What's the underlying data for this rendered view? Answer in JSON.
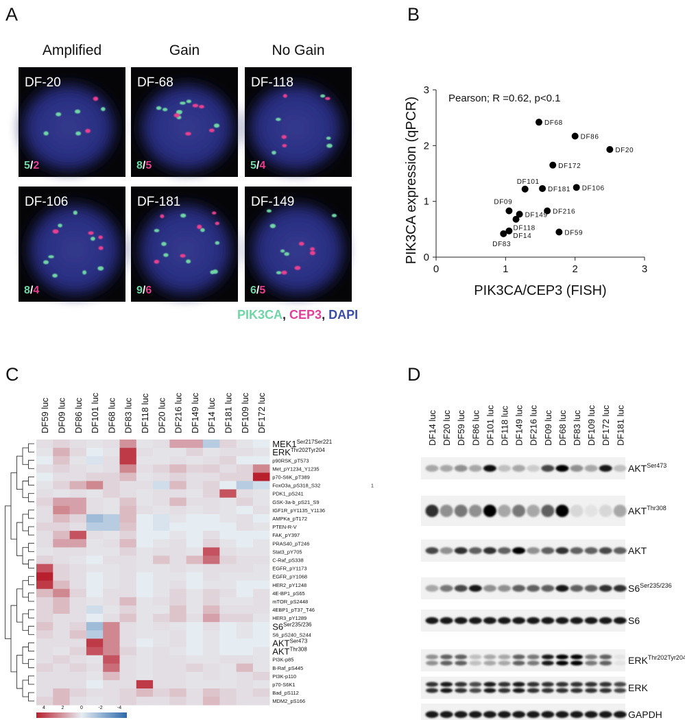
{
  "panel_labels": [
    "A",
    "B",
    "C",
    "D"
  ],
  "panel_a": {
    "headers": [
      "Amplified",
      "Gain",
      "No Gain"
    ],
    "count_separator": "/",
    "green_color": "#6fd6a6",
    "pink_color": "#ea3f8f",
    "cells": [
      {
        "name": "DF-20",
        "green": 5,
        "pink": 2
      },
      {
        "name": "DF-68",
        "green": 8,
        "pink": 5
      },
      {
        "name": "DF-118",
        "green": 5,
        "pink": 4
      },
      {
        "name": "DF-106",
        "green": 8,
        "pink": 4
      },
      {
        "name": "DF-181",
        "green": 9,
        "pink": 6
      },
      {
        "name": "DF-149",
        "green": 6,
        "pink": 5
      }
    ],
    "legend_separator": ", ",
    "legend": [
      {
        "text": "PIK3CA",
        "color": "#6fd6a6"
      },
      {
        "text": "CEP3",
        "color": "#e0409a"
      },
      {
        "text": "DAPI",
        "color": "#3b4ea6"
      }
    ]
  },
  "chart_data": {
    "type": "scatter",
    "annotation": "Pearson; R =0.62, p<0.1",
    "x_label": "PIK3CA/CEP3 (FISH)",
    "y_label": "PIK3CA expression (qPCR)",
    "x": [
      1.48,
      2.0,
      2.5,
      1.68,
      1.28,
      1.53,
      2.02,
      1.05,
      1.6,
      1.2,
      1.15,
      1.05,
      0.97,
      1.77
    ],
    "values": [
      2.42,
      2.17,
      1.93,
      1.65,
      1.22,
      1.23,
      1.25,
      0.83,
      0.83,
      0.77,
      0.68,
      0.47,
      0.42,
      0.45
    ],
    "point_labels": [
      "DF68",
      "DF86",
      "DF20",
      "DF172",
      "DF101",
      "DF181",
      "DF106",
      "DF09",
      "DF216",
      "DF149",
      "DF118",
      "DF14",
      "DF83",
      "DF59"
    ],
    "color": "#000000",
    "xlim": [
      0,
      3
    ],
    "ylim": [
      0,
      3
    ],
    "xticks": [
      0,
      1,
      2,
      3
    ],
    "yticks": [
      0,
      1,
      2,
      3
    ],
    "grid": false
  },
  "panel_c": {
    "columns": [
      "DF59 luc",
      "DF09 luc",
      "DF86 luc",
      "DF101 luc",
      "DF68 luc",
      "DF83 luc",
      "DF118 luc",
      "DF20 luc",
      "DF216 luc",
      "DF149 luc",
      "DF14 luc",
      "DF181 luc",
      "DF109 luc",
      "DF172 luc"
    ],
    "rows": [
      {
        "label": "MEK1",
        "sup": "Ser217Ser221",
        "values": [
          0.3,
          0.5,
          0.3,
          0.2,
          0.3,
          1.8,
          0.2,
          0.3,
          1.5,
          1.5,
          -1,
          0.5,
          0.2,
          0
        ]
      },
      {
        "label": "ERK",
        "sup": "Thr202Tyr204",
        "values": [
          0.2,
          1.2,
          0.4,
          0,
          0.2,
          3.5,
          0.3,
          0.2,
          0.2,
          0.5,
          0.2,
          0.3,
          0.3,
          0.2
        ]
      },
      {
        "label": "p90RSK_pT573",
        "values": [
          0,
          0.8,
          0.2,
          -0.3,
          0.3,
          3.5,
          0.2,
          0.2,
          0.3,
          0.2,
          0.3,
          0.5,
          0,
          0
        ]
      },
      {
        "label": "Met_pY1234_Y1235",
        "values": [
          0.3,
          0.5,
          0.3,
          0.2,
          0.3,
          2,
          0.3,
          0.5,
          1,
          0.5,
          0.6,
          0.3,
          0.5,
          2
        ]
      },
      {
        "label": "p70-S6K_pT389",
        "values": [
          0,
          0.3,
          0.3,
          0.5,
          0.5,
          1,
          0.2,
          0.3,
          0.5,
          0.3,
          0.3,
          0.5,
          0.5,
          4
        ]
      },
      {
        "label": "FoxO3a_pS318_S32",
        "side_note": "1",
        "values": [
          0.2,
          0.5,
          1.2,
          2,
          0.5,
          0.3,
          0.3,
          -0.5,
          1,
          0.3,
          0.5,
          0,
          -1,
          -0.5
        ]
      },
      {
        "label": "PDK1_pS241",
        "values": [
          0.3,
          0.2,
          0.3,
          0.2,
          0.5,
          0.3,
          0.2,
          0.3,
          0.3,
          0.2,
          0.5,
          3,
          0.3,
          0.2
        ]
      },
      {
        "label": "GSK-3a-b_pS21_S9",
        "values": [
          0.5,
          1.5,
          1.5,
          0.3,
          0.2,
          0.8,
          0.2,
          0.3,
          1,
          0.3,
          0.3,
          0.2,
          0.5,
          0.2
        ]
      },
      {
        "label": "IGF1R_pY1135_Y1136",
        "values": [
          0.3,
          2,
          1.5,
          0.3,
          0.2,
          1,
          0.3,
          0.2,
          0.3,
          0.2,
          0.3,
          0.2,
          0,
          0.3
        ]
      },
      {
        "label": "AMPKa_pT172",
        "values": [
          0.3,
          1,
          0.5,
          -1.5,
          -1,
          1,
          0,
          -0.3,
          0.2,
          0,
          0,
          0.2,
          0.3,
          0
        ]
      },
      {
        "label": "PTEN-R-V",
        "values": [
          0.5,
          0.5,
          0.3,
          -1,
          -1,
          0.8,
          0,
          -0.3,
          0,
          0,
          0,
          0,
          0.3,
          0.2
        ]
      },
      {
        "label": "FAK_pY397",
        "values": [
          0.3,
          1,
          3,
          0.3,
          0.2,
          0.5,
          0,
          0,
          0.2,
          0,
          0.3,
          0,
          0,
          0
        ]
      },
      {
        "label": "PRAS40_pT246",
        "values": [
          0.3,
          1.5,
          1.5,
          0.2,
          0.3,
          1,
          0,
          0.2,
          0.3,
          0,
          0.5,
          0.2,
          0,
          0.2
        ]
      },
      {
        "label": "Stat3_pY705",
        "values": [
          0.2,
          0.3,
          0.3,
          0.2,
          0.2,
          0.5,
          0.2,
          0.3,
          0.3,
          0.2,
          3,
          0.3,
          0.2,
          0.2
        ]
      },
      {
        "label": "C-Raf_pS338",
        "values": [
          0.5,
          0.3,
          0.2,
          0,
          0.3,
          0.3,
          0.2,
          0.8,
          0.3,
          1,
          2.5,
          0.5,
          0.3,
          0.3
        ]
      },
      {
        "label": "EGFR_pY1173",
        "values": [
          3,
          0.5,
          0.3,
          0.2,
          0.2,
          0.3,
          0.2,
          0.2,
          0.3,
          0.2,
          0.3,
          0.3,
          0.3,
          0.2
        ]
      },
      {
        "label": "EGFR_pY1068",
        "values": [
          4,
          0.5,
          0.3,
          0,
          0.2,
          0.3,
          0,
          0.2,
          0.2,
          0,
          0.3,
          0.2,
          0.2,
          0.2
        ]
      },
      {
        "label": "HER2_pY1248",
        "values": [
          3.5,
          1,
          0.3,
          0,
          0.2,
          0.3,
          0,
          0.2,
          0.3,
          0,
          0.2,
          0.2,
          0,
          0
        ]
      },
      {
        "label": "4E-BP1_pS65",
        "values": [
          1,
          2,
          0.5,
          0,
          0.3,
          0.3,
          0,
          0.2,
          0.5,
          0.2,
          0.5,
          0.3,
          0,
          0.3
        ]
      },
      {
        "label": "mTOR_pS2448",
        "values": [
          0.5,
          1,
          0.3,
          0.2,
          0.3,
          1,
          0.2,
          0.3,
          0.5,
          0.2,
          0.5,
          0.2,
          0.2,
          0.3
        ]
      },
      {
        "label": "4EBP1_pT37_T46",
        "values": [
          0.5,
          1,
          0.3,
          -0.5,
          0.2,
          0.5,
          0.2,
          0.2,
          0.8,
          0.2,
          1,
          0.3,
          0.3,
          0.3
        ]
      },
      {
        "label": "HER3_pY1289",
        "values": [
          0.5,
          0.3,
          0.3,
          0,
          0.3,
          0.8,
          0.2,
          0.5,
          0.8,
          0.3,
          1.5,
          0.5,
          0.5,
          0.2
        ]
      },
      {
        "label": "S6",
        "sup": "Ser235/236",
        "values": [
          0.8,
          0.3,
          0.5,
          -1.5,
          2,
          0.3,
          0.2,
          0.3,
          0.2,
          0,
          0.3,
          0,
          0.2,
          0
        ]
      },
      {
        "label": "S6_pS240_S244",
        "values": [
          0.5,
          0.3,
          0.8,
          -1,
          2,
          0.3,
          0.2,
          0.2,
          0.3,
          0,
          0.2,
          0,
          0.2,
          0
        ]
      },
      {
        "label": "AKT",
        "sup": "Ser473",
        "values": [
          0.3,
          0.3,
          0.3,
          3.5,
          2,
          0.3,
          0,
          0.2,
          0.3,
          0,
          0.2,
          0,
          0,
          0
        ]
      },
      {
        "label": "AKT",
        "sup": "Thr308",
        "values": [
          0.3,
          0.2,
          0.5,
          3,
          2,
          0.5,
          0.2,
          0.3,
          0.2,
          0,
          0.2,
          0,
          0,
          0.2
        ]
      },
      {
        "label": "PI3K-p85",
        "values": [
          0.3,
          0.5,
          0.3,
          0.2,
          3,
          0.3,
          0.2,
          0.3,
          0.3,
          0.2,
          0.2,
          0.3,
          0.3,
          0.2
        ]
      },
      {
        "label": "B-Raf_pS445",
        "values": [
          0.5,
          0.3,
          0.5,
          0.3,
          2.5,
          0.3,
          0.2,
          0.3,
          0.3,
          0.5,
          0.3,
          0.2,
          1,
          0.2
        ]
      },
      {
        "label": "PI3K-p110",
        "values": [
          0.3,
          0.3,
          0.3,
          0.2,
          1,
          0.3,
          0.2,
          0.3,
          0.3,
          0.2,
          0.3,
          0.2,
          0.3,
          0.5
        ]
      },
      {
        "label": "p70-S6K1",
        "values": [
          0.3,
          0.3,
          0.3,
          0,
          0.3,
          0.3,
          3.5,
          0.3,
          0.3,
          0.2,
          0.2,
          0.2,
          0.3,
          0.2
        ]
      },
      {
        "label": "Bad_pS112",
        "values": [
          0.3,
          1,
          0.5,
          0.3,
          0.3,
          0.5,
          1,
          0.5,
          0.8,
          0.3,
          0.8,
          0.5,
          0.3,
          0.5
        ]
      },
      {
        "label": "MDM2_pS166",
        "values": [
          0.5,
          1,
          0.3,
          0.2,
          0.3,
          0.5,
          0.3,
          0.3,
          0.5,
          0.3,
          1,
          0.5,
          0.3,
          0.3
        ]
      }
    ],
    "colorbar_ticks": [
      4,
      2,
      0,
      -2,
      -4
    ],
    "high_color": "#b8202e",
    "mid_color": "#e6edf2",
    "low_color": "#2b68ab"
  },
  "panel_d": {
    "columns": [
      "DF14 luc",
      "DF20 luc",
      "DF59 luc",
      "DF86 luc",
      "DF101 luc",
      "DF118 luc",
      "DF149 luc",
      "DF216 luc",
      "DF09 luc",
      "DF68 luc",
      "DF83 luc",
      "DF109 luc",
      "DF172 luc",
      "DF181 luc"
    ],
    "rows": [
      {
        "label": "AKT",
        "sup": "Ser473",
        "intensities": [
          0.3,
          0.3,
          0.4,
          0.3,
          0.95,
          0.2,
          0.3,
          0.15,
          0.7,
          1,
          0.4,
          0.3,
          0.9,
          0.2
        ]
      },
      {
        "label": "AKT",
        "sup": "Thr308",
        "intensities": [
          0.8,
          0.4,
          0.5,
          0.4,
          1,
          0.3,
          0.5,
          0.3,
          0.6,
          1,
          0.1,
          0.05,
          0.1,
          0.3
        ]
      },
      {
        "label": "AKT",
        "intensities": [
          0.7,
          0.4,
          0.8,
          0.6,
          0.8,
          0.6,
          1,
          0.4,
          0.6,
          0.8,
          0.6,
          0.6,
          0.7,
          0.6
        ]
      },
      {
        "label": "S6",
        "sup": "Ser235/236",
        "intensities": [
          0.3,
          0.5,
          0.7,
          0.9,
          0.4,
          0.4,
          0.6,
          0.6,
          0.6,
          0.9,
          0.6,
          0.6,
          0.8,
          0.8
        ]
      },
      {
        "label": "S6",
        "intensities": [
          0.9,
          0.9,
          0.9,
          0.9,
          0.9,
          0.9,
          0.9,
          0.9,
          0.9,
          0.9,
          0.9,
          0.9,
          0.9,
          0.9
        ]
      },
      {
        "label": "ERK",
        "sup": "Thr202Tyr204",
        "intensities": [
          0.4,
          0.6,
          0.6,
          0.2,
          0.3,
          0.3,
          0.6,
          0.5,
          0.9,
          1,
          1,
          0.5,
          0.6,
          0.05
        ]
      },
      {
        "label": "ERK",
        "intensities": [
          0.8,
          0.9,
          0.8,
          0.7,
          0.9,
          0.8,
          0.9,
          0.8,
          0.8,
          0.8,
          0.8,
          0.8,
          0.8,
          0.7
        ]
      },
      {
        "label": "GAPDH",
        "intensities": [
          0.9,
          0.9,
          0.9,
          0.9,
          0.9,
          0.9,
          0.9,
          0.9,
          0.9,
          0.9,
          0.9,
          0.9,
          0.9,
          0.9
        ]
      }
    ]
  }
}
